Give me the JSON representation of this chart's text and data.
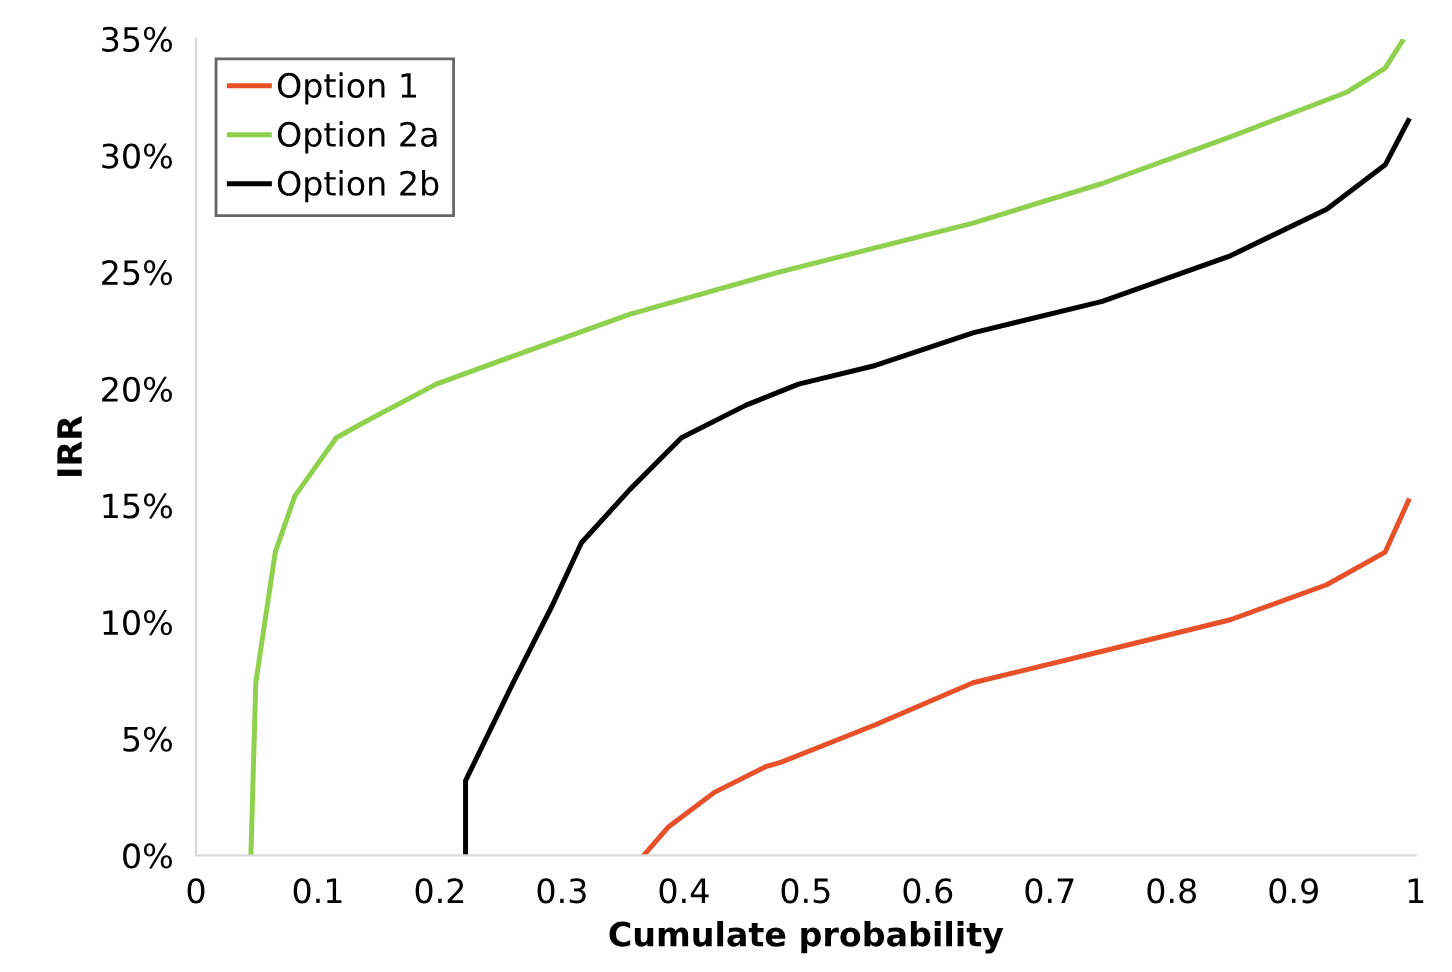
{
  "chart_data": {
    "type": "line",
    "xlabel": "Cumulate probability",
    "ylabel": "IRR",
    "xlim": [
      0,
      1
    ],
    "xticks": [
      0,
      0.1,
      0.2,
      0.3,
      0.4,
      0.5,
      0.6,
      0.7,
      0.8,
      0.9,
      1
    ],
    "ylim": [
      0,
      35
    ],
    "yticks": [
      {
        "value": 0,
        "label": "0%"
      },
      {
        "value": 5,
        "label": "5%"
      },
      {
        "value": 10,
        "label": "10%"
      },
      {
        "value": 15,
        "label": "15%"
      },
      {
        "value": 20,
        "label": "20%"
      },
      {
        "value": 25,
        "label": "25%"
      },
      {
        "value": 30,
        "label": "30%"
      },
      {
        "value": 35,
        "label": "35%"
      }
    ],
    "grid": false,
    "legend": "top left",
    "marker": "none",
    "line_style": "solid",
    "series": [
      {
        "name": "Option 1",
        "color": "#e8502a",
        "x": [
          0.367,
          0.387,
          0.425,
          0.467,
          0.48,
          0.557,
          0.637,
          0.743,
          0.848,
          0.927,
          0.975,
          0.994
        ],
        "values": [
          0,
          1.2,
          2.7,
          3.8,
          4.0,
          5.6,
          7.4,
          8.75,
          10.1,
          11.6,
          13,
          15.2
        ]
      },
      {
        "name": "Option 2a",
        "color": "#8fd14f",
        "x": [
          0.045,
          0.049,
          0.065,
          0.081,
          0.115,
          0.139,
          0.197,
          0.26,
          0.356,
          0.478,
          0.637,
          0.743,
          0.848,
          0.943,
          0.975,
          0.989
        ],
        "values": [
          0,
          7.4,
          13,
          15.4,
          17.9,
          18.6,
          20.2,
          21.4,
          23.2,
          25,
          27.1,
          28.8,
          30.8,
          32.7,
          33.75,
          34.9
        ]
      },
      {
        "name": "Option 2b",
        "color": "#000000",
        "x": [
          0.221,
          0.221,
          0.26,
          0.292,
          0.316,
          0.356,
          0.398,
          0.451,
          0.494,
          0.557,
          0.637,
          0.743,
          0.848,
          0.927,
          0.975,
          0.991,
          0.994
        ],
        "values": [
          0,
          3.2,
          7.4,
          10.7,
          13.4,
          15.7,
          17.9,
          19.3,
          20.2,
          21,
          22.4,
          23.75,
          25.7,
          27.7,
          29.6,
          31.2,
          31.5
        ]
      }
    ]
  }
}
